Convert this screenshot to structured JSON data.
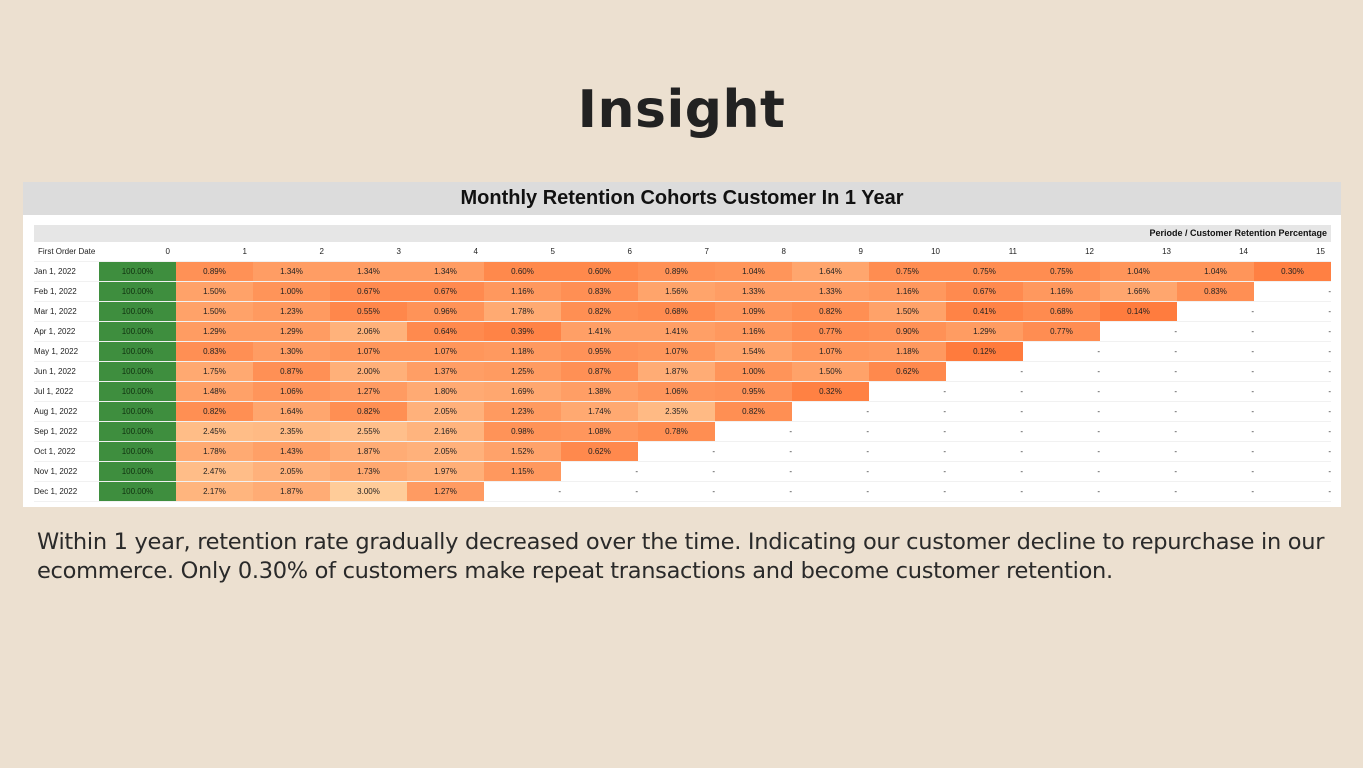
{
  "slide": {
    "title": "Insight",
    "insight": "Within 1 year, retention rate gradually decreased over the time. Indicating our customer decline to repurchase in our ecommerce. Only 0.30% of customers make repeat transactions and become customer retention."
  },
  "chart_data": {
    "type": "heatmap",
    "title": "Monthly Retention Cohorts Customer In 1 Year",
    "subtitle": "Periode / Customer Retention Percentage",
    "row_header": "First Order Date",
    "columns": [
      "0",
      "1",
      "2",
      "3",
      "4",
      "5",
      "6",
      "7",
      "8",
      "9",
      "10",
      "11",
      "12",
      "13",
      "14",
      "15"
    ],
    "empty_symbol": "-",
    "colors": {
      "first_column": "#3e8e3e",
      "low": "#ffcc99",
      "high": "#ff7b3d"
    },
    "rows": [
      {
        "label": "Jan 1, 2022",
        "values": [
          100.0,
          0.89,
          1.34,
          1.34,
          1.34,
          0.6,
          0.6,
          0.89,
          1.04,
          1.64,
          0.75,
          0.75,
          0.75,
          1.04,
          1.04,
          0.3
        ]
      },
      {
        "label": "Feb 1, 2022",
        "values": [
          100.0,
          1.5,
          1.0,
          0.67,
          0.67,
          1.16,
          0.83,
          1.56,
          1.33,
          1.33,
          1.16,
          0.67,
          1.16,
          1.66,
          0.83,
          null
        ]
      },
      {
        "label": "Mar 1, 2022",
        "values": [
          100.0,
          1.5,
          1.23,
          0.55,
          0.96,
          1.78,
          0.82,
          0.68,
          1.09,
          0.82,
          1.5,
          0.41,
          0.68,
          0.14,
          null,
          null
        ]
      },
      {
        "label": "Apr 1, 2022",
        "values": [
          100.0,
          1.29,
          1.29,
          2.06,
          0.64,
          0.39,
          1.41,
          1.41,
          1.16,
          0.77,
          0.9,
          1.29,
          0.77,
          null,
          null,
          null
        ]
      },
      {
        "label": "May 1, 2022",
        "values": [
          100.0,
          0.83,
          1.3,
          1.07,
          1.07,
          1.18,
          0.95,
          1.07,
          1.54,
          1.07,
          1.18,
          0.12,
          null,
          null,
          null,
          null
        ]
      },
      {
        "label": "Jun 1, 2022",
        "values": [
          100.0,
          1.75,
          0.87,
          2.0,
          1.37,
          1.25,
          0.87,
          1.87,
          1.0,
          1.5,
          0.62,
          null,
          null,
          null,
          null,
          null
        ]
      },
      {
        "label": "Jul 1, 2022",
        "values": [
          100.0,
          1.48,
          1.06,
          1.27,
          1.8,
          1.69,
          1.38,
          1.06,
          0.95,
          0.32,
          null,
          null,
          null,
          null,
          null,
          null
        ]
      },
      {
        "label": "Aug 1, 2022",
        "values": [
          100.0,
          0.82,
          1.64,
          0.82,
          2.05,
          1.23,
          1.74,
          2.35,
          0.82,
          null,
          null,
          null,
          null,
          null,
          null,
          null
        ]
      },
      {
        "label": "Sep 1, 2022",
        "values": [
          100.0,
          2.45,
          2.35,
          2.55,
          2.16,
          0.98,
          1.08,
          0.78,
          null,
          null,
          null,
          null,
          null,
          null,
          null,
          null
        ]
      },
      {
        "label": "Oct 1, 2022",
        "values": [
          100.0,
          1.78,
          1.43,
          1.87,
          2.05,
          1.52,
          0.62,
          null,
          null,
          null,
          null,
          null,
          null,
          null,
          null,
          null
        ]
      },
      {
        "label": "Nov 1, 2022",
        "values": [
          100.0,
          2.47,
          2.05,
          1.73,
          1.97,
          1.15,
          null,
          null,
          null,
          null,
          null,
          null,
          null,
          null,
          null,
          null
        ]
      },
      {
        "label": "Dec 1, 2022",
        "values": [
          100.0,
          2.17,
          1.87,
          3.0,
          1.27,
          null,
          null,
          null,
          null,
          null,
          null,
          null,
          null,
          null,
          null,
          null
        ]
      }
    ]
  }
}
